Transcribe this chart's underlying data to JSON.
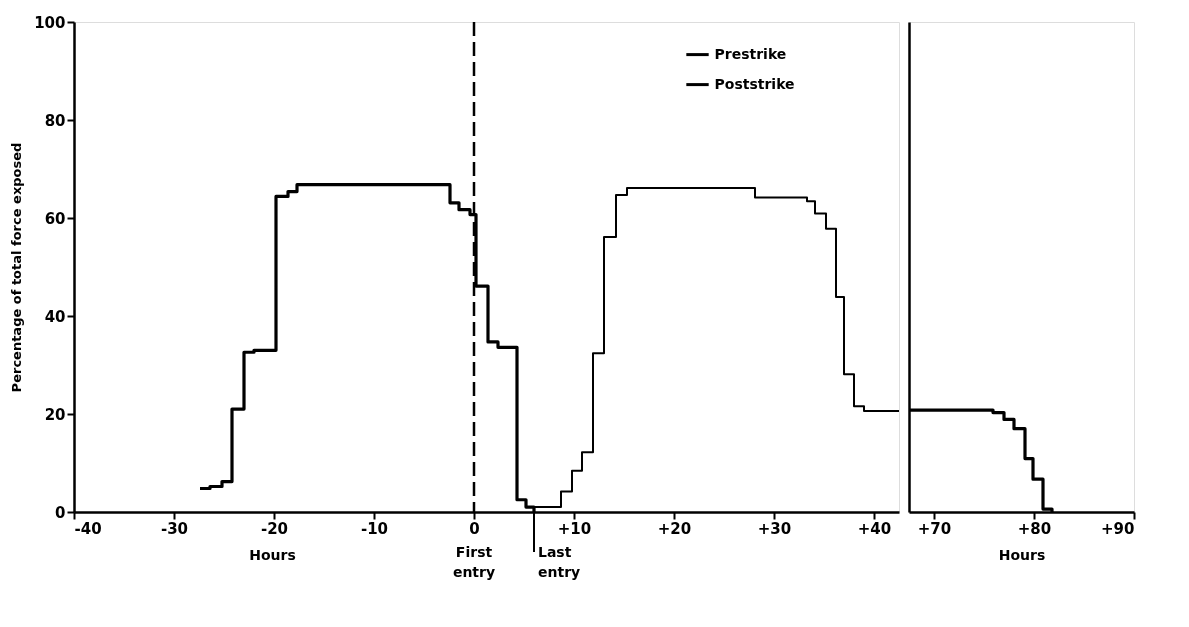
{
  "chart_data": [
    {
      "type": "step",
      "ylabel": "Percentage of total force exposed",
      "xlabel": "Hours",
      "xlim": [
        -40,
        42.5
      ],
      "ylim": [
        0,
        100
      ],
      "xticks": [
        -40,
        -30,
        -20,
        -10,
        0,
        {
          "value": 10,
          "label": "+10"
        },
        {
          "value": 20,
          "label": "+20"
        },
        {
          "value": 30,
          "label": "+30"
        },
        {
          "value": 40,
          "label": "+40"
        }
      ],
      "yticks": [
        0,
        20,
        40,
        60,
        80,
        100
      ],
      "legend": "top right",
      "grid": false,
      "marker": "none",
      "line_style": "solid",
      "ref_lines": [
        {
          "axis": "x",
          "value": 0,
          "label": "First entry",
          "line_style": "dashed",
          "color": "#000000"
        }
      ],
      "annotations": [
        {
          "text": "Last entry",
          "x": 6,
          "y": 0
        }
      ],
      "series": [
        {
          "name": "Prestrike",
          "color": "#000000",
          "x": [
            -27.4,
            -26.4,
            -25.2,
            -24.2,
            -23.0,
            -22.0,
            -19.8,
            -18.6,
            -17.7,
            -2.4,
            -1.5,
            -0.4,
            0.2,
            1.4,
            2.4,
            4.3,
            5.2,
            6.0
          ],
          "values": [
            4.8,
            5.2,
            6.2,
            21,
            32.6,
            33,
            64.4,
            65.4,
            66.8,
            63.1,
            61.7,
            60.7,
            46.1,
            34.7,
            33.6,
            2.5,
            1,
            0
          ]
        },
        {
          "name": "Poststrike",
          "color": "#000000",
          "x": [
            6.0,
            8.7,
            9.8,
            10.8,
            11.9,
            13.0,
            14.2,
            15.3,
            28.1,
            33.3,
            34.1,
            35.2,
            36.2,
            37.0,
            38.0,
            39.0,
            42.5
          ],
          "values": [
            1,
            4.2,
            8.4,
            12.2,
            32.4,
            56.1,
            64.7,
            66.1,
            64.2,
            63.4,
            60.9,
            57.8,
            43.9,
            28.1,
            21.6,
            20.6,
            20.6
          ]
        }
      ]
    },
    {
      "type": "step",
      "xlabel": "Hours",
      "xlim": [
        67.5,
        90
      ],
      "ylim": [
        0,
        100
      ],
      "xticks": [
        {
          "value": 70,
          "label": "+70"
        },
        {
          "value": 80,
          "label": "+80"
        },
        {
          "value": 90,
          "label": "+90"
        }
      ],
      "yticks": [
        0,
        20,
        40,
        60,
        80,
        100
      ],
      "tick_labels": "x",
      "grid": false,
      "marker": "none",
      "line_style": "solid",
      "series": [
        {
          "color": "#000000",
          "x": [
            67.5,
            75.9,
            77.0,
            78.0,
            79.1,
            79.9,
            80.9,
            81.8
          ],
          "values": [
            20.8,
            20.3,
            18.9,
            17.0,
            10.9,
            6.7,
            0.6,
            0
          ]
        }
      ]
    }
  ]
}
